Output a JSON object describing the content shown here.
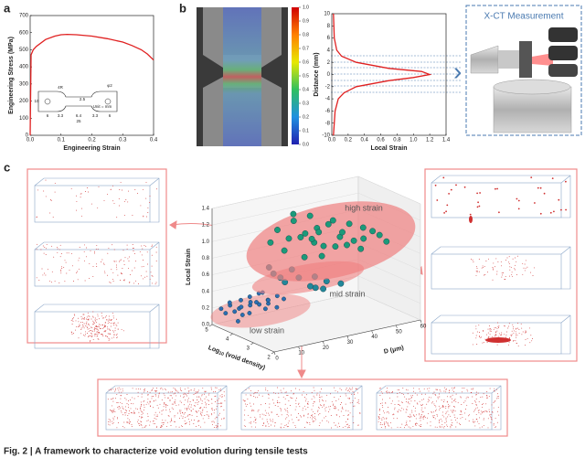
{
  "panel_labels": [
    "a",
    "b",
    "c"
  ],
  "chart_data": [
    {
      "type": "line",
      "xlabel": "Engineering Strain",
      "ylabel": "Engineering Stress (MPa)",
      "x": [
        0,
        0.003,
        0.01,
        0.02,
        0.05,
        0.08,
        0.1,
        0.12,
        0.15,
        0.2,
        0.25,
        0.3,
        0.33,
        0.36,
        0.38,
        0.4
      ],
      "values": [
        0,
        470,
        500,
        520,
        560,
        580,
        588,
        590,
        588,
        580,
        565,
        545,
        525,
        500,
        475,
        440
      ],
      "color": "#e02020",
      "xlim": [
        0,
        0.4
      ],
      "ylim": [
        0,
        700
      ],
      "xticks": [
        {
          "value": 0,
          "label": "0.0"
        },
        0.1,
        0.2,
        0.3,
        0.4
      ],
      "yticks": [
        0,
        100,
        200,
        300,
        400,
        500,
        600,
        700
      ]
    },
    {
      "type": "line",
      "xlabel": "Local Strain",
      "ylabel": "Distance (mm)",
      "x": [
        0.02,
        0.03,
        0.04,
        0.08,
        0.15,
        0.3,
        0.7,
        1.0,
        1.2,
        1.1,
        0.7,
        0.3,
        0.12,
        0.06,
        0.03,
        0.02
      ],
      "values": [
        -10,
        -8,
        -6,
        -4,
        -3,
        -2,
        -1,
        -0.5,
        0,
        0.5,
        1,
        2,
        3,
        4,
        6,
        10
      ],
      "color": "#e02020",
      "xlim": [
        0,
        1.4
      ],
      "ylim": [
        -10,
        10
      ],
      "xticks": [
        {
          "value": 0,
          "label": "0.0"
        },
        0.2,
        0.4,
        0.6,
        0.8,
        {
          "value": 1,
          "label": "1.0"
        },
        1.2,
        1.4
      ],
      "yticks": [
        -10,
        -8,
        -6,
        -4,
        -2,
        0,
        2,
        4,
        6,
        8,
        10
      ]
    },
    {
      "type": "scatter3d",
      "zlabel": "Local Strain",
      "xlabel": [
        "Log",
        "10",
        "(void density)"
      ],
      "ylabel": "D (μm)",
      "xlim": [
        5,
        2
      ],
      "ylim": [
        0,
        60
      ],
      "zlim": [
        0,
        1.4
      ],
      "xticks": [
        5,
        4,
        3,
        2
      ],
      "yticks": [
        0,
        10,
        20,
        30,
        40,
        50,
        60
      ],
      "zticks": [
        {
          "value": 0,
          "label": "0.0"
        },
        0.2,
        0.4,
        0.6,
        0.8,
        {
          "value": 1,
          "label": "1.0"
        },
        1.2,
        1.4
      ],
      "series": [
        {
          "name": "low strain",
          "color": "#2c6db3",
          "x": [
            4.8,
            4.6,
            4.5,
            4.4,
            4.2,
            4.1,
            4.0,
            3.9,
            3.8,
            3.7,
            3.6,
            3.5,
            3.4,
            4.7,
            4.3,
            4.0,
            3.8,
            3.6,
            3.3,
            4.5,
            4.2,
            3.9,
            3.7,
            4.1,
            3.5
          ],
          "y": [
            2,
            4,
            3,
            6,
            5,
            8,
            7,
            10,
            9,
            12,
            11,
            14,
            13,
            3,
            6,
            4,
            8,
            10,
            15,
            5,
            9,
            6,
            12,
            3,
            8
          ],
          "z": [
            0.2,
            0.25,
            0.3,
            0.22,
            0.35,
            0.28,
            0.4,
            0.3,
            0.45,
            0.32,
            0.38,
            0.42,
            0.3,
            0.15,
            0.25,
            0.2,
            0.35,
            0.28,
            0.4,
            0.18,
            0.3,
            0.22,
            0.36,
            0.12,
            0.5
          ]
        },
        {
          "name": "mid strain",
          "color": "#23879a",
          "x": [
            3.6,
            3.4,
            3.2,
            3.8,
            3.0,
            3.5,
            3.3,
            3.7,
            2.9,
            3.1,
            3.9,
            3.4
          ],
          "y": [
            18,
            22,
            25,
            15,
            30,
            20,
            28,
            17,
            35,
            26,
            14,
            32
          ],
          "z": [
            0.55,
            0.6,
            0.5,
            0.65,
            0.55,
            0.7,
            0.45,
            0.6,
            0.5,
            0.62,
            0.72,
            0.4
          ]
        },
        {
          "name": "high strain",
          "color": "#1b9a7a",
          "x": [
            4.2,
            4.0,
            3.8,
            3.6,
            3.5,
            3.3,
            3.2,
            3.0,
            4.1,
            3.9,
            3.7,
            3.4,
            3.1,
            2.9,
            3.6,
            3.8,
            3.5,
            3.3,
            4.3,
            3.0,
            2.8,
            3.2,
            3.6,
            3.9,
            3.4,
            3.1,
            2.7,
            3.5,
            3.7,
            4.0
          ],
          "y": [
            20,
            25,
            28,
            30,
            35,
            38,
            40,
            45,
            22,
            27,
            32,
            36,
            42,
            48,
            26,
            30,
            33,
            39,
            18,
            44,
            50,
            41,
            29,
            24,
            37,
            46,
            52,
            31,
            34,
            23
          ],
          "z": [
            1.1,
            1.2,
            1.05,
            0.95,
            1.15,
            1.0,
            0.9,
            1.1,
            0.85,
            1.0,
            1.1,
            1.2,
            0.95,
            1.05,
            0.8,
            1.25,
            0.9,
            1.05,
            0.95,
            0.85,
            1.0,
            1.15,
            1.0,
            1.3,
            0.88,
            0.95,
            0.92,
            1.08,
            0.75,
            1.0
          ]
        }
      ]
    }
  ],
  "colorbar": {
    "lim": [
      0,
      1
    ],
    "ticks": [
      {
        "value": 1,
        "label": "1.0"
      },
      0.9,
      0.8,
      0.7,
      0.6,
      0.5,
      0.4,
      0.3,
      0.2,
      0.1,
      {
        "value": 0,
        "label": "0.0"
      }
    ]
  },
  "inset_labels": [
    "4R",
    "2.5",
    "φ2",
    "Unit = mm",
    "6",
    "3.3",
    "6.4",
    "3.3",
    "6",
    "25",
    "10"
  ],
  "xct_title": "X-CT Measurement",
  "caption": "Fig. 2 | A framework to characterize void evolution during tensile tests"
}
